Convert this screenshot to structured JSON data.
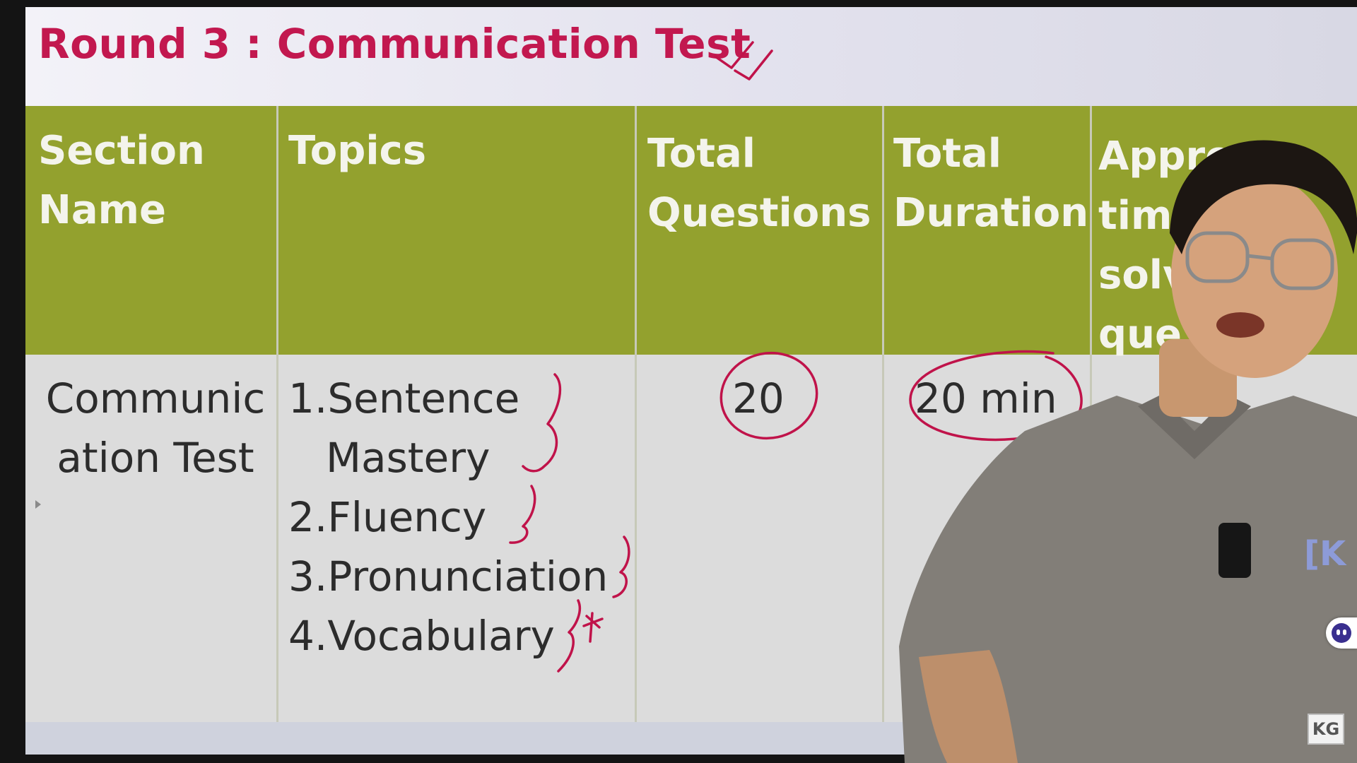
{
  "slide": {
    "title": "Round 3 : Communication Test",
    "title_color": "#c2184f",
    "header_bg": "#93a12e",
    "body_bg": "#dcdcdc",
    "ink_color": "#c0134a"
  },
  "table": {
    "headers": [
      "Section\nName",
      "Topics",
      "Total\nQuestions",
      "Total\nDuration",
      "Approx\ntime\nsolv\nque"
    ],
    "row": {
      "section_name": "Communic\nation Test",
      "topics": [
        "1.Sentence",
        "Mastery",
        "2.Fluency",
        "3.Pronunciation",
        "4.Vocabulary"
      ],
      "total_questions": "20",
      "total_duration": "20 min"
    }
  },
  "watermark": {
    "logo_text": "KG",
    "shirt_logo_text": "[K"
  },
  "icons": {
    "corner_logo": "kg-logo-icon",
    "side_widget": "chat-bot-icon",
    "edge_marker": "play-triangle-icon"
  }
}
